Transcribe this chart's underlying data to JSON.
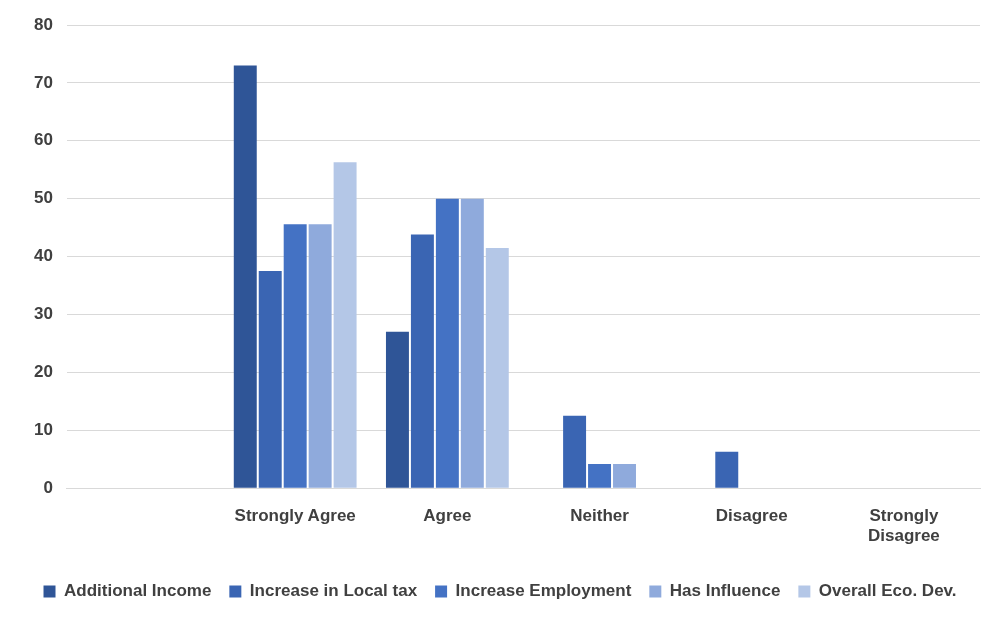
{
  "chart_data": {
    "type": "bar",
    "categories": [
      null,
      "Strongly Agree",
      "Agree",
      "Neither",
      "Disagree",
      "Strongly Disagree"
    ],
    "series": [
      {
        "name": "Additional Income",
        "color": "#2f5597",
        "values": [
          null,
          73,
          27,
          0,
          0,
          0
        ]
      },
      {
        "name": "Increase in Local tax",
        "color": "#3a65b3",
        "values": [
          null,
          37.5,
          43.8,
          12.5,
          6.3,
          0
        ]
      },
      {
        "name": "Increase Employment",
        "color": "#4472c4",
        "values": [
          null,
          45.6,
          50,
          4.2,
          0,
          0
        ]
      },
      {
        "name": "Has Influence",
        "color": "#8faadc",
        "values": [
          null,
          45.6,
          50,
          4.2,
          0,
          0
        ]
      },
      {
        "name": "Overall Eco. Dev.",
        "color": "#b4c7e7",
        "values": [
          null,
          56.3,
          41.5,
          0,
          0,
          0
        ]
      }
    ],
    "ylim": [
      0,
      80
    ],
    "yticks": [
      0,
      10,
      20,
      30,
      40,
      50,
      60,
      70,
      80
    ],
    "grid": "y",
    "legend": "bottom"
  }
}
